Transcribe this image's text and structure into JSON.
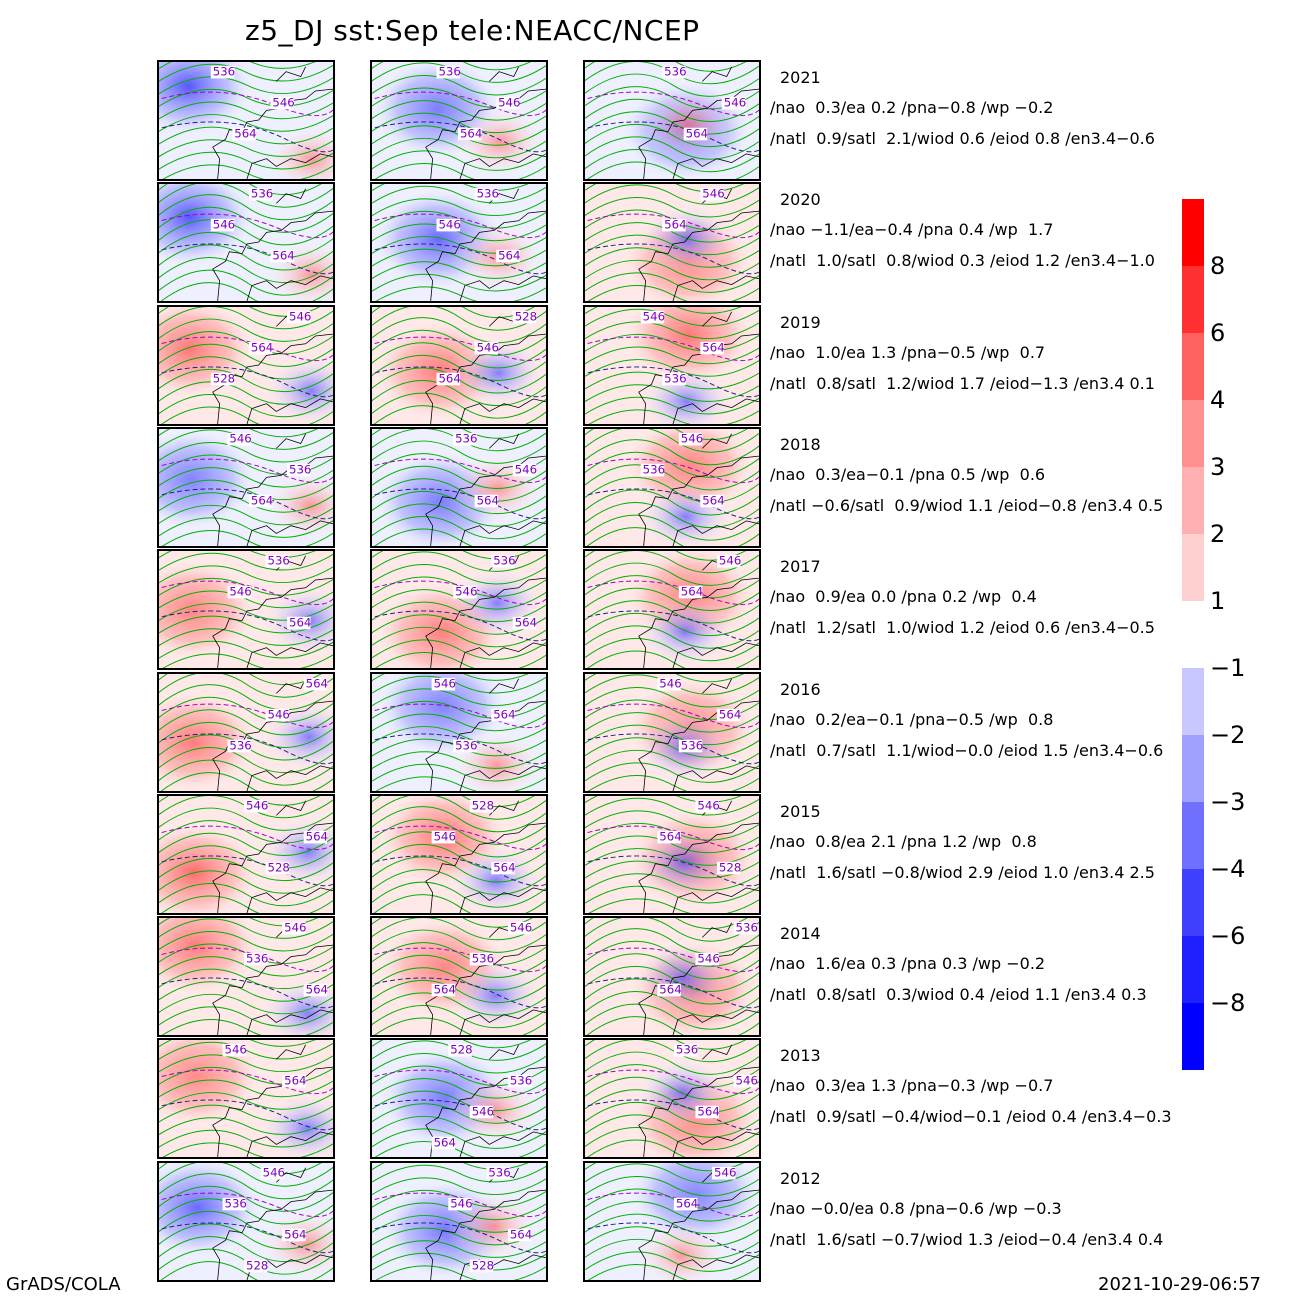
{
  "title": "z5_DJ  sst:Sep  tele:NEACC/NCEP",
  "footer_left": "GrADS/COLA",
  "footer_right": "2021-10-29-06:57",
  "rows": [
    {
      "year": "2021",
      "line1": "/nao  0.3/ea 0.2 /pna−0.8 /wp −0.2",
      "line2": "/natl  0.9/satl  2.1/wiod 0.6 /eiod 0.8 /en3.4−0.6",
      "labels": [
        [
          "536",
          "546",
          "564"
        ],
        [
          "536",
          "546",
          "564"
        ],
        [
          "536",
          "546",
          "564"
        ]
      ],
      "anom": [
        -0.9,
        -0.3,
        -0.4
      ]
    },
    {
      "year": "2020",
      "line1": "/nao −1.1/ea−0.4 /pna 0.4 /wp  1.7",
      "line2": "/natl  1.0/satl  0.8/wiod 0.3 /eiod 1.2 /en3.4−1.0",
      "labels": [
        [
          "536",
          "546",
          "564"
        ],
        [
          "536",
          "546",
          "564"
        ],
        [
          "546",
          "564"
        ]
      ],
      "anom": [
        -0.9,
        -0.6,
        0.3
      ]
    },
    {
      "year": "2019",
      "line1": "/nao  1.0/ea 1.3 /pna−0.5 /wp  0.7",
      "line2": "/natl  0.8/satl  1.2/wiod 1.7 /eiod−1.3 /en3.4 0.1",
      "labels": [
        [
          "546",
          "564",
          "528"
        ],
        [
          "528",
          "546",
          "564"
        ],
        [
          "546",
          "564",
          "536"
        ]
      ],
      "anom": [
        0.6,
        0.5,
        0.6
      ]
    },
    {
      "year": "2018",
      "line1": "/nao  0.3/ea−0.1 /pna 0.5 /wp  0.6",
      "line2": "/natl −0.6/satl  0.9/wiod 1.1 /eiod−0.8 /en3.4 0.5",
      "labels": [
        [
          "546",
          "536",
          "564"
        ],
        [
          "536",
          "546",
          "564"
        ],
        [
          "546",
          "536",
          "564"
        ]
      ],
      "anom": [
        -0.2,
        -0.3,
        0.3
      ]
    },
    {
      "year": "2017",
      "line1": "/nao  0.9/ea 0.0 /pna 0.2 /wp  0.4",
      "line2": "/natl  1.2/satl  1.0/wiod 1.2 /eiod 0.6 /en3.4−0.5",
      "labels": [
        [
          "536",
          "546",
          "564"
        ],
        [
          "536",
          "546",
          "564"
        ],
        [
          "546",
          "564"
        ]
      ],
      "anom": [
        0.3,
        0.4,
        0.4
      ]
    },
    {
      "year": "2016",
      "line1": "/nao  0.2/ea−0.1 /pna−0.5 /wp  0.8",
      "line2": "/natl  0.7/satl  1.1/wiod−0.0 /eiod 1.5 /en3.4−0.6",
      "labels": [
        [
          "564",
          "546",
          "536"
        ],
        [
          "546",
          "564",
          "536"
        ],
        [
          "546",
          "564",
          "536"
        ]
      ],
      "anom": [
        0.5,
        -0.2,
        0.1
      ]
    },
    {
      "year": "2015",
      "line1": "/nao  0.8/ea 2.1 /pna 1.2 /wp  0.8",
      "line2": "/natl  1.6/satl −0.8/wiod 2.9 /eiod 1.0 /en3.4 2.5",
      "labels": [
        [
          "546",
          "564",
          "528"
        ],
        [
          "528",
          "546",
          "564"
        ],
        [
          "546",
          "564",
          "528"
        ]
      ],
      "anom": [
        0.8,
        0.6,
        0.7
      ]
    },
    {
      "year": "2014",
      "line1": "/nao  1.6/ea 0.3 /pna 0.3 /wp −0.2",
      "line2": "/natl  0.8/satl  0.3/wiod 0.4 /eiod 1.1 /en3.4 0.3",
      "labels": [
        [
          "546",
          "536",
          "564"
        ],
        [
          "546",
          "536",
          "564"
        ],
        [
          "536",
          "546",
          "564"
        ]
      ],
      "anom": [
        0.5,
        0.3,
        0.5
      ]
    },
    {
      "year": "2013",
      "line1": "/nao  0.3/ea 1.3 /pna−0.3 /wp −0.7",
      "line2": "/natl  0.9/satl −0.4/wiod−0.1 /eiod 0.4 /en3.4−0.3",
      "labels": [
        [
          "546",
          "564"
        ],
        [
          "528",
          "536",
          "546",
          "564"
        ],
        [
          "536",
          "546",
          "564"
        ]
      ],
      "anom": [
        0.2,
        -0.3,
        0.2
      ]
    },
    {
      "year": "2012",
      "line1": "/nao −0.0/ea 0.8 /pna−0.6 /wp −0.3",
      "line2": "/natl  1.6/satl −0.7/wiod 1.3 /eiod−0.4 /en3.4 0.4",
      "labels": [
        [
          "546",
          "536",
          "564",
          "528"
        ],
        [
          "536",
          "546",
          "564",
          "528"
        ],
        [
          "546",
          "564"
        ]
      ],
      "anom": [
        -0.6,
        -0.4,
        -0.1
      ]
    }
  ],
  "colorbar": {
    "positive": [
      {
        "color": "#ff0000"
      },
      {
        "color": "#ff3030"
      },
      {
        "color": "#ff6060"
      },
      {
        "color": "#ff9090"
      },
      {
        "color": "#ffb0b0"
      },
      {
        "color": "#ffd0d0"
      }
    ],
    "positive_labels": [
      "8",
      "6",
      "4",
      "3",
      "2",
      "1"
    ],
    "negative": [
      {
        "color": "#c8c8ff"
      },
      {
        "color": "#a0a0ff"
      },
      {
        "color": "#7070ff"
      },
      {
        "color": "#4040ff"
      },
      {
        "color": "#2020ff"
      },
      {
        "color": "#0000ff"
      }
    ],
    "negative_labels": [
      "−1",
      "−2",
      "−3",
      "−4",
      "−6",
      "−8"
    ]
  }
}
